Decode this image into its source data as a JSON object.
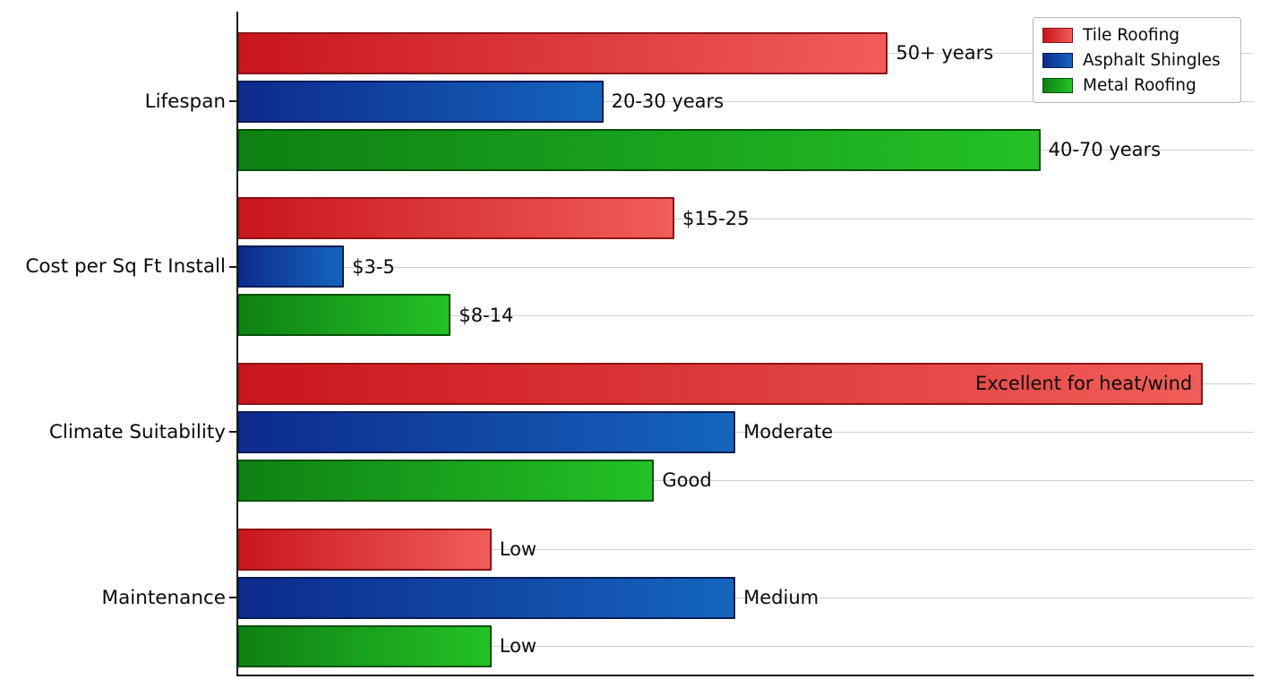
{
  "chart_data": {
    "type": "bar",
    "orientation": "horizontal",
    "title": "",
    "xlabel": "",
    "ylabel": "",
    "xlim": [
      0,
      10
    ],
    "grid": true,
    "legend_position": "upper right",
    "gridline_color": "#cfcfcf",
    "background_color": "#ffffff",
    "categories": [
      "Lifespan",
      "Cost per Sq Ft Install",
      "Climate Suitability",
      "Maintenance"
    ],
    "series": [
      {
        "name": "Tile Roofing",
        "values": [
          6.4,
          4.3,
          9.5,
          2.5
        ],
        "bar_labels": [
          "50+ years",
          "$15-25",
          "Excellent for heat/wind",
          "Low"
        ],
        "label_inside": [
          false,
          false,
          true,
          false
        ],
        "color_dark": "#c8161d",
        "color_light": "#f15d58",
        "edge_color": "#8c1418"
      },
      {
        "name": "Asphalt Shingles",
        "values": [
          3.6,
          1.05,
          4.9,
          4.9
        ],
        "bar_labels": [
          "20-30 years",
          "$3-5",
          "Moderate",
          "Medium"
        ],
        "label_inside": [
          false,
          false,
          false,
          false
        ],
        "color_dark": "#0d2a8e",
        "color_light": "#1565bd",
        "edge_color": "#081c54"
      },
      {
        "name": "Metal Roofing",
        "values": [
          7.9,
          2.1,
          4.1,
          2.5
        ],
        "bar_labels": [
          "40-70 years",
          "$8-14",
          "Good",
          "Low"
        ],
        "label_inside": [
          false,
          false,
          false,
          false
        ],
        "color_dark": "#0e8112",
        "color_light": "#24c127",
        "edge_color": "#06500a"
      }
    ]
  }
}
